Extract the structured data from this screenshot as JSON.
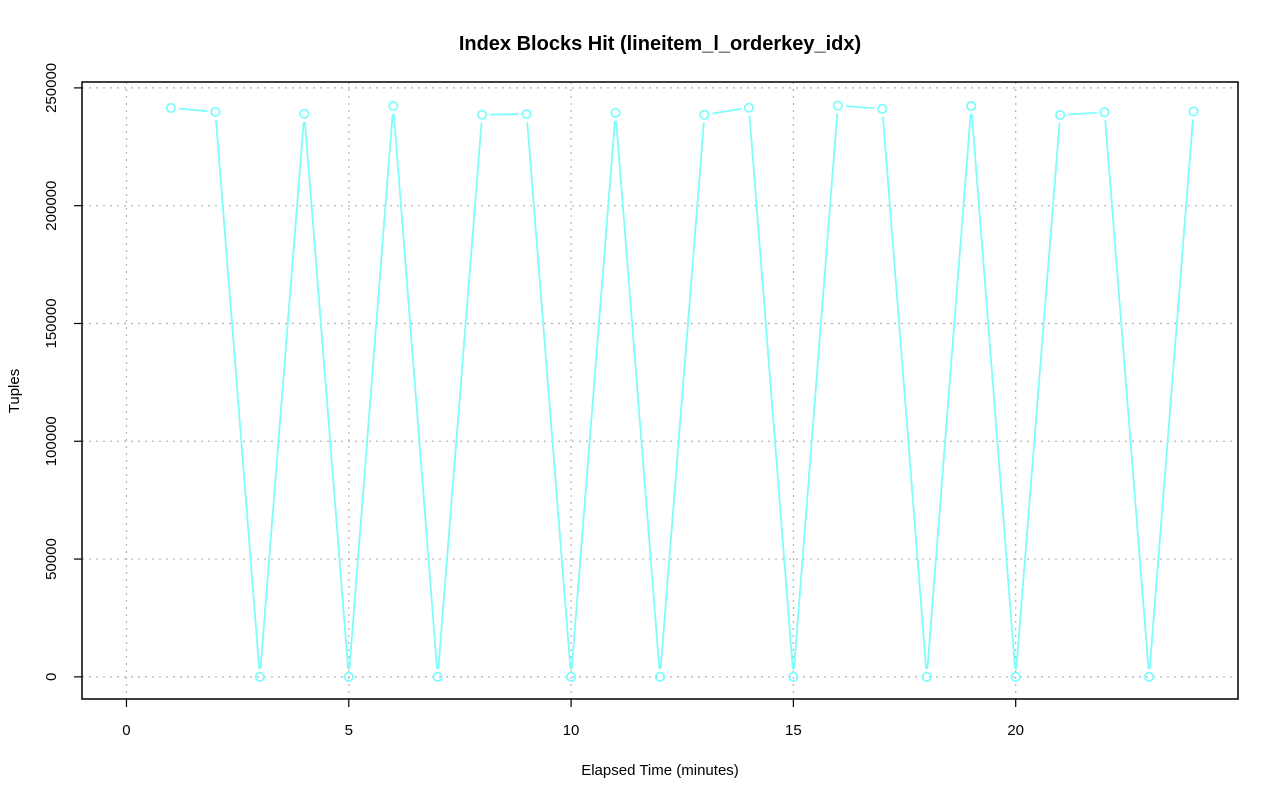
{
  "chart_data": {
    "type": "line",
    "title": "Index Blocks Hit (lineitem_l_orderkey_idx)",
    "xlabel": "Elapsed Time (minutes)",
    "ylabel": "Tuples",
    "xlim": [
      -1,
      25
    ],
    "ylim": [
      -9400,
      252500
    ],
    "xticks": [
      0,
      5,
      10,
      15,
      20
    ],
    "yticks": [
      0,
      50000,
      100000,
      150000,
      200000,
      250000
    ],
    "grid": true,
    "color": "#7ffcfc",
    "series": [
      {
        "x": [
          1,
          2,
          3,
          4,
          5,
          6,
          7,
          8,
          9,
          10,
          11,
          12,
          13,
          14,
          15,
          16,
          17,
          18,
          19,
          20,
          21,
          22,
          23,
          24
        ],
        "values": [
          241500,
          239800,
          0,
          239000,
          0,
          242300,
          0,
          238600,
          238900,
          0,
          239400,
          0,
          238600,
          241600,
          0,
          242500,
          241100,
          0,
          242300,
          0,
          238500,
          239700,
          0,
          240000
        ]
      }
    ]
  }
}
